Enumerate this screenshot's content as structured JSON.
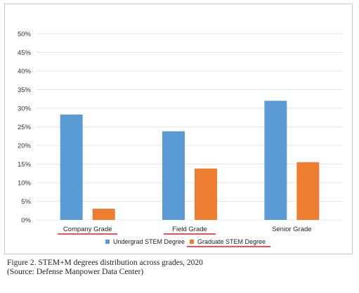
{
  "chart_data": {
    "type": "bar",
    "categories": [
      "Company Grade",
      "Field Grade",
      "Senior Grade"
    ],
    "series": [
      {
        "name": "Undergrad STEM Degree",
        "values": [
          28.3,
          23.8,
          32
        ],
        "color": "#5b9bd5"
      },
      {
        "name": "Graduate STEM Degree",
        "values": [
          3,
          13.8,
          15.5
        ],
        "color": "#ed7d31"
      }
    ],
    "ylim": [
      0,
      50
    ],
    "yticks": [
      "0%",
      "5%",
      "10%",
      "15%",
      "20%",
      "25%",
      "30%",
      "35%",
      "40%",
      "45%",
      "50%"
    ],
    "grid": true,
    "legend": "bottom",
    "annotation_color": "#e31a1c"
  },
  "caption": {
    "line1": "Figure 2. STEM+M degrees distribution across grades, 2020",
    "line2": "(Source: Defense Manpower Data Center)"
  }
}
